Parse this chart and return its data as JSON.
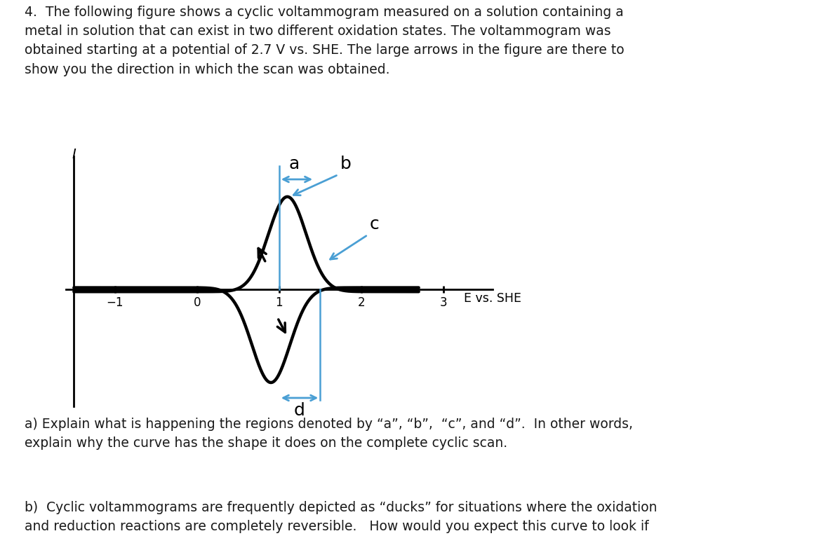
{
  "title_text": "4.  The following figure shows a cyclic voltammogram measured on a solution containing a\nmetal in solution that can exist in two different oxidation states. The voltammogram was\nobtained starting at a potential of 2.7 V vs. SHE. The large arrows in the figure are there to\nshow you the direction in which the scan was obtained.",
  "xlabel": "E vs. SHE",
  "ylabel": "I",
  "xticks": [
    -1,
    0,
    1,
    2,
    3
  ],
  "xlim": [
    -1.6,
    3.6
  ],
  "ylim": [
    -1.75,
    2.0
  ],
  "background_color": "#ffffff",
  "curve_color": "#000000",
  "arrow_color": "#4a9fd4",
  "label_a": "a",
  "label_b": "b",
  "label_c": "c",
  "label_d": "d",
  "label_fontsize": 18,
  "bottom_text_1": "a) Explain what is happening the regions denoted by “a”, “b”,  “c”, and “d”.  In other words,\nexplain why the curve has the shape it does on the complete cyclic scan.",
  "bottom_text_2": "b)  Cyclic voltammograms are frequently depicted as “ducks” for situations where the oxidation\nand reduction reactions are completely reversible.   How would you expect this curve to look if"
}
